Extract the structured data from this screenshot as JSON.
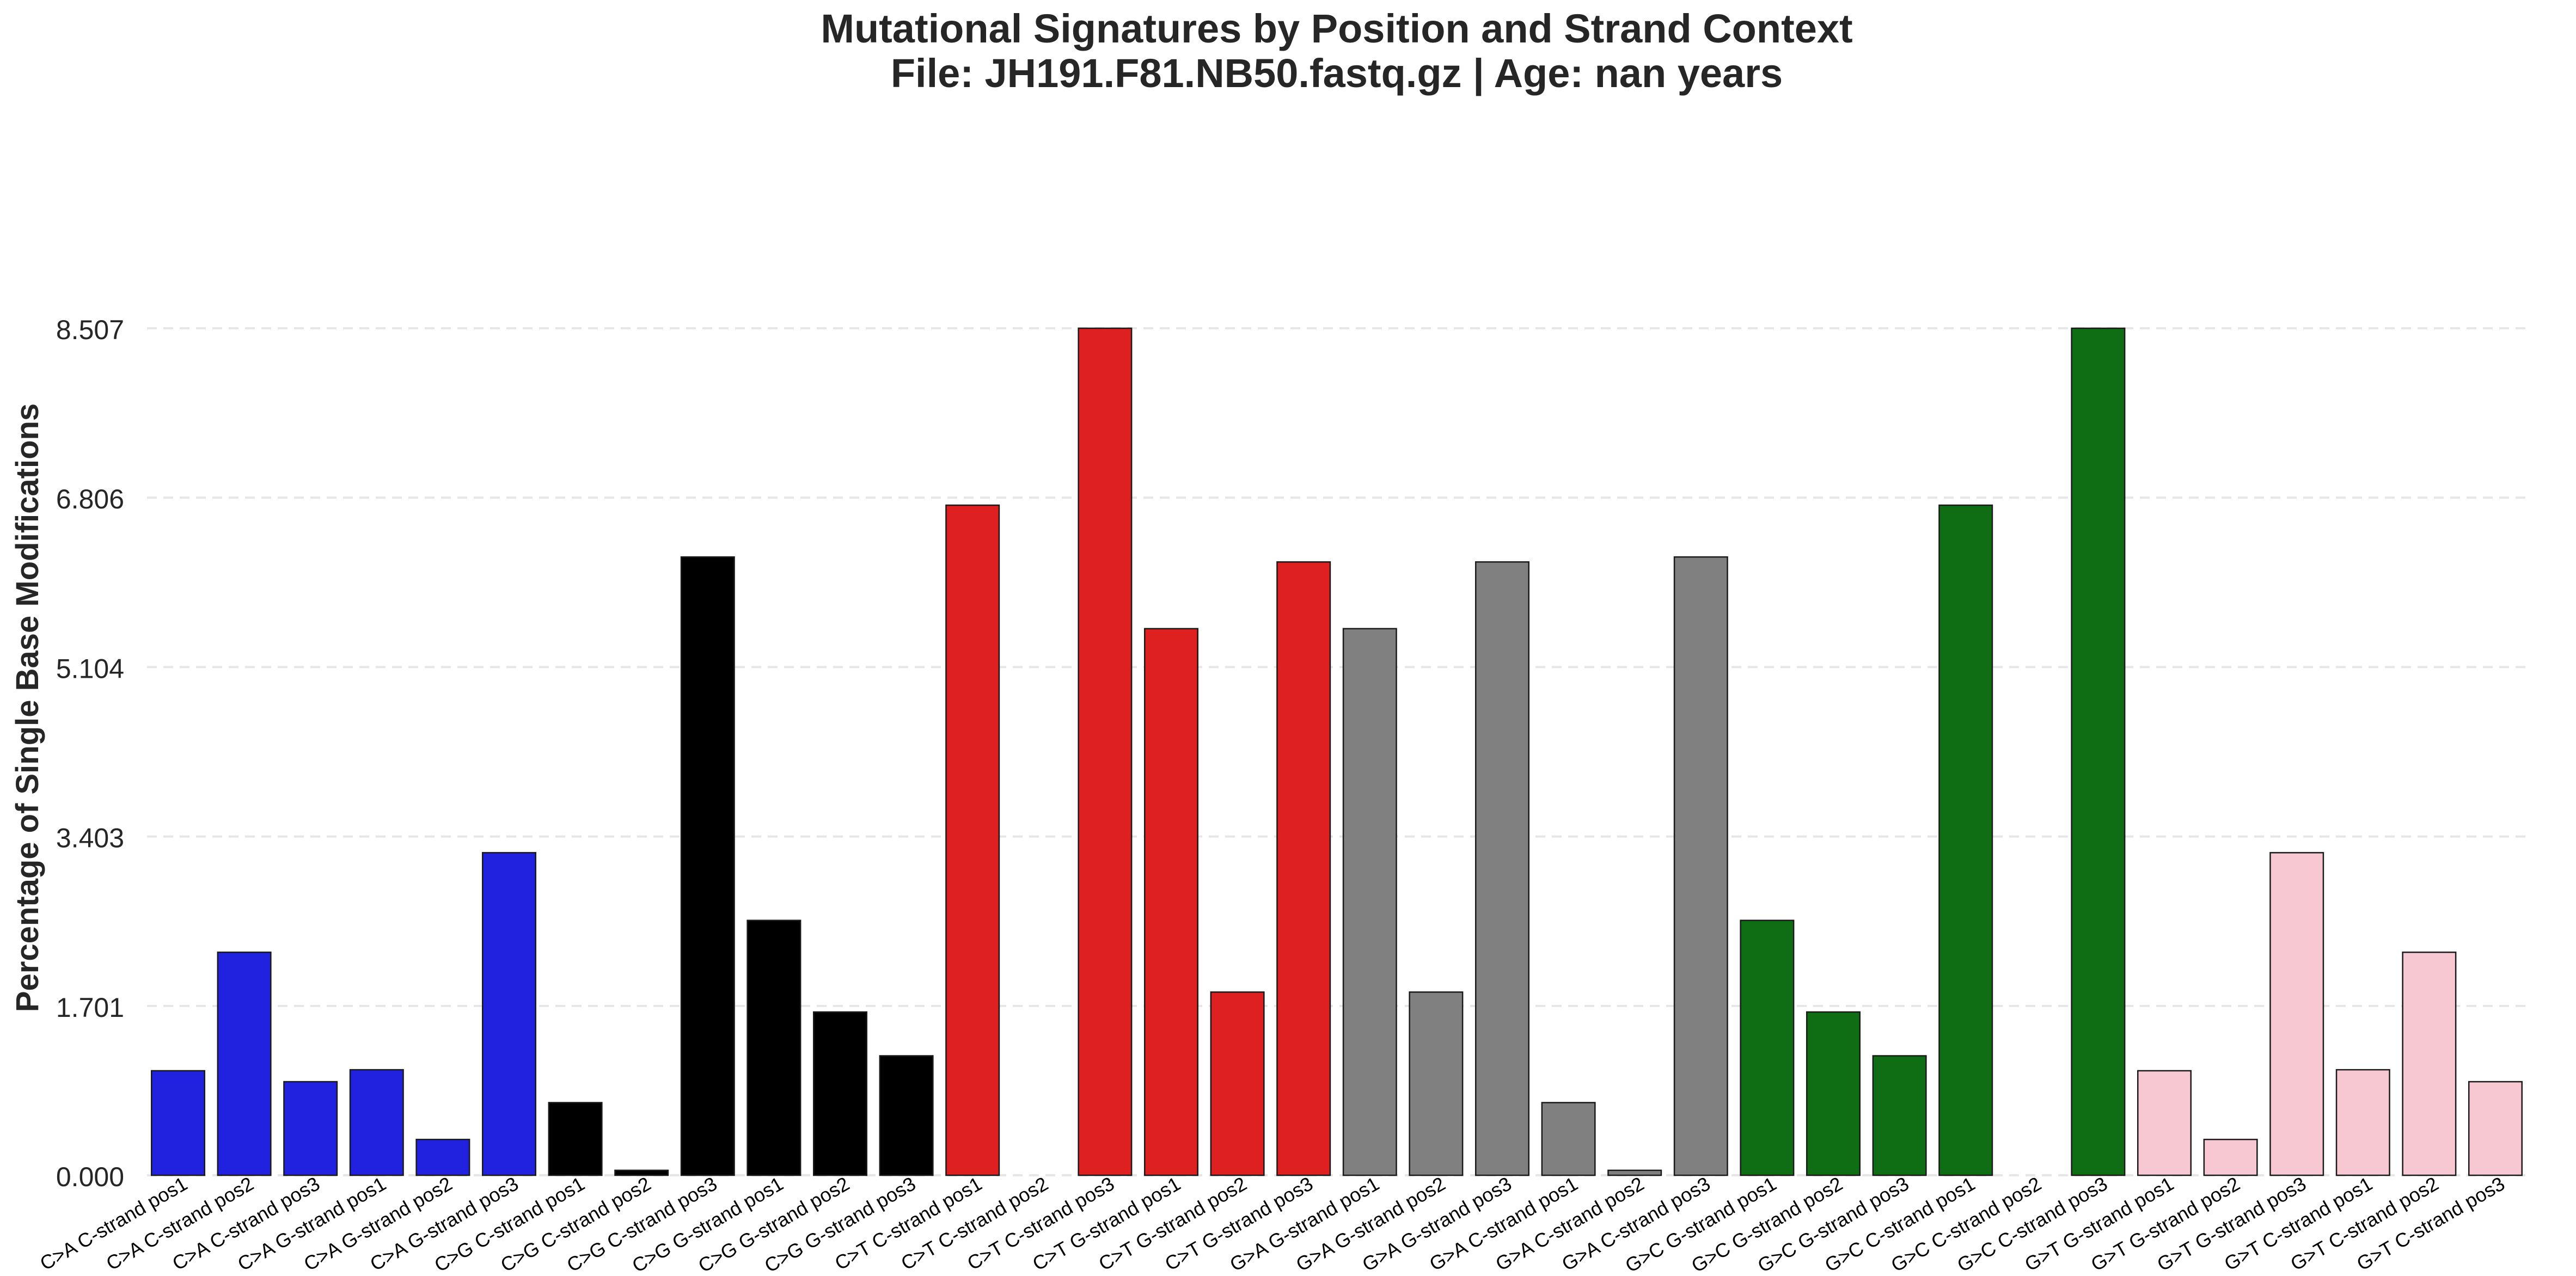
{
  "chart_data": {
    "type": "bar",
    "title_line1": "Mutational Signatures by Position and Strand Context",
    "title_line2": "File: JH191.F81.NB50.fastq.gz | Age: nan years",
    "ylabel": "Percentage of Single Base Modifications",
    "xlabel": "",
    "ylim": [
      0,
      8.507
    ],
    "yticks": [
      "0.000",
      "1.701",
      "3.403",
      "5.104",
      "6.806",
      "8.507"
    ],
    "grid": "horizontal dashed",
    "categories": [
      "C>A C-strand pos1",
      "C>A C-strand pos2",
      "C>A C-strand pos3",
      "C>A G-strand pos1",
      "C>A G-strand pos2",
      "C>A G-strand pos3",
      "C>G C-strand pos1",
      "C>G C-strand pos2",
      "C>G C-strand pos3",
      "C>G G-strand pos1",
      "C>G G-strand pos2",
      "C>G G-strand pos3",
      "C>T C-strand pos1",
      "C>T C-strand pos2",
      "C>T C-strand pos3",
      "C>T G-strand pos1",
      "C>T G-strand pos2",
      "C>T G-strand pos3",
      "G>A G-strand pos1",
      "G>A G-strand pos2",
      "G>A G-strand pos3",
      "G>A C-strand pos1",
      "G>A C-strand pos2",
      "G>A C-strand pos3",
      "G>C G-strand pos1",
      "G>C G-strand pos2",
      "G>C G-strand pos3",
      "G>C C-strand pos1",
      "G>C C-strand pos2",
      "G>C C-strand pos3",
      "G>T G-strand pos1",
      "G>T G-strand pos2",
      "G>T G-strand pos3",
      "G>T C-strand pos1",
      "G>T C-strand pos2",
      "G>T C-strand pos3"
    ],
    "values": [
      1.05,
      2.24,
      0.94,
      1.06,
      0.36,
      3.24,
      0.73,
      0.05,
      6.21,
      2.56,
      1.64,
      1.2,
      6.73,
      0.0,
      8.507,
      5.49,
      1.84,
      6.16,
      5.49,
      1.84,
      6.16,
      0.73,
      0.05,
      6.21,
      2.56,
      1.64,
      1.2,
      6.73,
      0.0,
      8.507,
      1.05,
      0.36,
      3.24,
      1.06,
      2.24,
      0.94
    ],
    "colors": [
      "#2121e0",
      "#2121e0",
      "#2121e0",
      "#2121e0",
      "#2121e0",
      "#2121e0",
      "#000000",
      "#000000",
      "#000000",
      "#000000",
      "#000000",
      "#000000",
      "#de2020",
      "#de2020",
      "#de2020",
      "#de2020",
      "#de2020",
      "#de2020",
      "#808080",
      "#808080",
      "#808080",
      "#808080",
      "#808080",
      "#808080",
      "#0f6e14",
      "#0f6e14",
      "#0f6e14",
      "#0f6e14",
      "#0f6e14",
      "#0f6e14",
      "#f7c8d2",
      "#f7c8d2",
      "#f7c8d2",
      "#f7c8d2",
      "#f7c8d2",
      "#f7c8d2"
    ]
  }
}
